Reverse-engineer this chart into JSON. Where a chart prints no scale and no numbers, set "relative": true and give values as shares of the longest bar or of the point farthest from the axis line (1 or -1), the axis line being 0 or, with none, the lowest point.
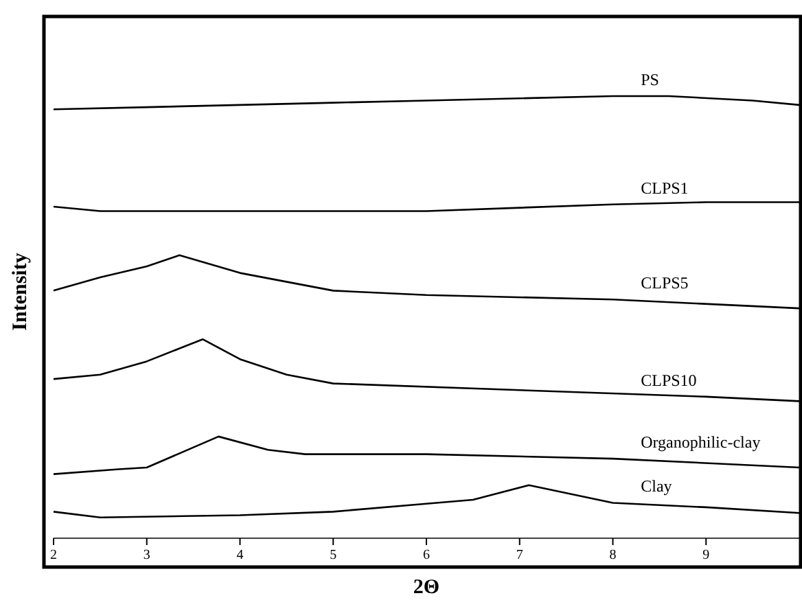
{
  "chart_data": {
    "type": "line",
    "xlabel": "2Θ",
    "ylabel": "Intensity",
    "relative": true,
    "xlim": [
      2,
      10
    ],
    "xticks": [
      2,
      3,
      4,
      5,
      6,
      7,
      8,
      9
    ],
    "grid": false,
    "legend": false,
    "marker": "none",
    "line_style": "solid",
    "series": [
      {
        "name": "PS",
        "color": "#000000",
        "x": [
          2,
          3,
          4,
          5,
          6,
          7,
          8,
          8.6,
          9.5,
          10
        ],
        "values": [
          0.97,
          0.975,
          0.98,
          0.985,
          0.99,
          0.995,
          1,
          1,
          0.99,
          0.98
        ]
      },
      {
        "name": "CLPS1",
        "color": "#000000",
        "x": [
          2,
          2.5,
          4,
          6,
          8,
          9,
          10
        ],
        "values": [
          0.75,
          0.74,
          0.74,
          0.74,
          0.755,
          0.76,
          0.76
        ]
      },
      {
        "name": "CLPS5",
        "color": "#000000",
        "x": [
          2,
          2.5,
          3,
          3.35,
          4,
          5,
          6,
          8,
          10
        ],
        "values": [
          0.56,
          0.59,
          0.615,
          0.64,
          0.6,
          0.56,
          0.55,
          0.54,
          0.52
        ]
      },
      {
        "name": "CLPS10",
        "color": "#000000",
        "x": [
          2,
          2.5,
          3,
          3.6,
          4,
          4.5,
          5,
          7,
          9,
          10
        ],
        "values": [
          0.36,
          0.37,
          0.4,
          0.45,
          0.405,
          0.37,
          0.35,
          0.335,
          0.32,
          0.31
        ]
      },
      {
        "name": "Organophilic-clay",
        "color": "#000000",
        "x": [
          2,
          2.7,
          3,
          3.77,
          4.3,
          4.7,
          6,
          8,
          10
        ],
        "values": [
          0.145,
          0.156,
          0.16,
          0.23,
          0.2,
          0.19,
          0.19,
          0.18,
          0.16
        ]
      },
      {
        "name": "Clay",
        "color": "#000000",
        "x": [
          2,
          2.5,
          4,
          5,
          6,
          6.5,
          7.1,
          8,
          9,
          10
        ],
        "values": [
          0.06,
          0.047,
          0.052,
          0.06,
          0.078,
          0.087,
          0.12,
          0.08,
          0.07,
          0.057
        ]
      }
    ]
  }
}
